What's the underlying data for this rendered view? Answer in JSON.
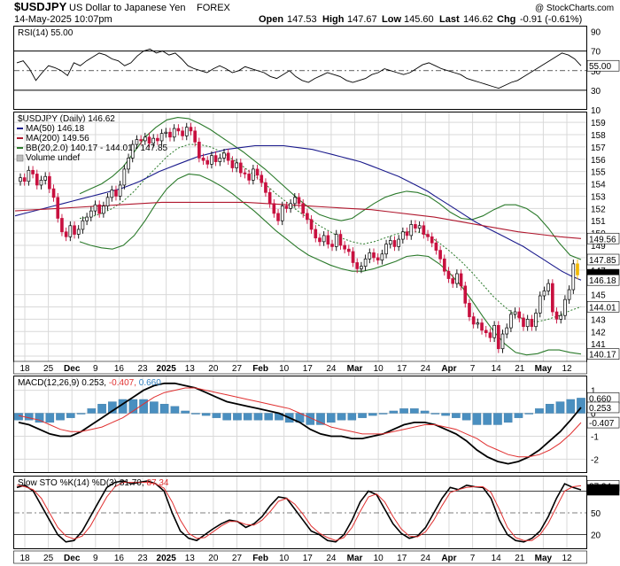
{
  "header": {
    "symbol": "$USDJPY",
    "name": "US Dollar to Japanese Yen",
    "exchange": "FOREX",
    "date": "14-May-2025 10:07pm",
    "copyright": "@ StockCharts.com",
    "quote": {
      "open_label": "Open",
      "open": "147.53",
      "high_label": "High",
      "high": "147.67",
      "low_label": "Low",
      "low": "145.60",
      "last_label": "Last",
      "last": "146.62",
      "chg_label": "Chg",
      "chg": "-0.91 (-0.61%)"
    }
  },
  "colors": {
    "up_candle": "#ffffff",
    "down_candle": "#c8103f",
    "ma50": "#1a1a8c",
    "ma200": "#b0182e",
    "bb": "#2b7a2b",
    "macd_hist": "#4a8fc0",
    "signal": "#e03030",
    "last_marker": "#f2b800"
  },
  "chart_data": [
    {
      "type": "line",
      "title": "RSI(14) 55.00",
      "y_ticks": [
        "90",
        "70",
        "50",
        "30",
        "10"
      ],
      "overbought": 70,
      "oversold": 30,
      "series": [
        {
          "name": "RSI(14)",
          "last_label": "55.00",
          "values": [
            58,
            60,
            52,
            40,
            48,
            55,
            53,
            50,
            45,
            58,
            55,
            60,
            64,
            68,
            66,
            62,
            60,
            55,
            58,
            65,
            70,
            72,
            68,
            70,
            66,
            68,
            62,
            55,
            52,
            50,
            48,
            52,
            55,
            52,
            48,
            50,
            54,
            52,
            50,
            48,
            44,
            42,
            46,
            50,
            44,
            40,
            38,
            42,
            45,
            48,
            46,
            44,
            40,
            38,
            40,
            42,
            46,
            48,
            52,
            50,
            48,
            46,
            48,
            52,
            56,
            58,
            55,
            52,
            50,
            48,
            46,
            42,
            40,
            38,
            36,
            34,
            32,
            35,
            38,
            40,
            44,
            48,
            52,
            56,
            60,
            64,
            68,
            66,
            62,
            55
          ]
        }
      ],
      "ylim": [
        10,
        95
      ]
    },
    {
      "type": "line",
      "title": "$USDJPY (Daily) 146.62",
      "legend": [
        {
          "key": "ma50",
          "label": "MA(50) 146.18"
        },
        {
          "key": "ma200",
          "label": "MA(200) 149.56"
        },
        {
          "key": "bb",
          "label": "BB(20,2.0) 140.17 - 144.01 - 147.85"
        },
        {
          "key": "vol",
          "label": "Volume undef"
        }
      ],
      "y_ticks": [
        "159",
        "158",
        "157",
        "156",
        "155",
        "154",
        "153",
        "152",
        "151",
        "150",
        "149",
        "148",
        "147",
        "145",
        "144",
        "143",
        "142",
        "141",
        "140"
      ],
      "ylim": [
        139.5,
        159.8
      ],
      "price_tags": [
        {
          "value": 149.56,
          "label": "149.56",
          "style": "plain"
        },
        {
          "value": 147.85,
          "label": "147.85",
          "style": "plain"
        },
        {
          "value": 146.62,
          "label": "146.62",
          "style": "dark"
        },
        {
          "value": 146.18,
          "label": "146.18",
          "style": "plain"
        },
        {
          "value": 144.01,
          "label": "144.01",
          "style": "plain"
        },
        {
          "value": 140.17,
          "label": "140.17",
          "style": "plain"
        }
      ],
      "x_labels": [
        "18",
        "25",
        "Dec",
        "9",
        "16",
        "23",
        "2025",
        "13",
        "20",
        "27",
        "Feb",
        "10",
        "17",
        "24",
        "Mar",
        "10",
        "17",
        "24",
        "Apr",
        "7",
        "14",
        "21",
        "May",
        "12"
      ],
      "close": [
        154.5,
        154.2,
        155.1,
        154.8,
        153.9,
        154.3,
        154.6,
        153.6,
        152.9,
        151.2,
        150.1,
        149.7,
        150.6,
        149.9,
        150.3,
        151.0,
        151.3,
        151.8,
        152.3,
        151.6,
        152.2,
        152.9,
        153.5,
        153.0,
        153.9,
        155.2,
        156.1,
        157.2,
        157.6,
        157.5,
        157.8,
        157.3,
        157.7,
        157.5,
        158.1,
        158.2,
        157.8,
        158.5,
        158.3,
        157.9,
        158.6,
        158.3,
        157.4,
        156.1,
        155.9,
        155.6,
        156.3,
        155.8,
        156.1,
        156.5,
        155.9,
        155.3,
        155.7,
        154.9,
        154.8,
        154.3,
        155.2,
        154.7,
        154.1,
        153.3,
        152.4,
        151.6,
        151.0,
        152.2,
        152.0,
        152.4,
        152.9,
        152.4,
        151.6,
        151.1,
        150.3,
        149.6,
        149.3,
        149.8,
        149.1,
        148.9,
        149.9,
        149.0,
        148.7,
        148.5,
        147.6,
        147.1,
        147.3,
        147.9,
        148.4,
        148.0,
        147.8,
        148.3,
        149.1,
        149.4,
        148.9,
        149.5,
        150.1,
        149.8,
        150.7,
        150.4,
        150.6,
        149.9,
        149.7,
        149.2,
        148.6,
        147.9,
        146.9,
        146.3,
        145.9,
        146.7,
        145.7,
        144.3,
        143.2,
        142.6,
        142.7,
        142.1,
        141.9,
        141.5,
        142.5,
        140.6,
        141.8,
        142.3,
        143.4,
        143.6,
        143.1,
        142.4,
        143.0,
        142.4,
        143.5,
        144.9,
        145.3,
        145.9,
        143.6,
        143.0,
        143.3,
        144.6,
        145.4,
        147.5,
        146.6
      ],
      "ma50": [
        151.4,
        151.6,
        151.8,
        152.0,
        152.2,
        152.4,
        152.6,
        152.8,
        153.0,
        153.2,
        153.4,
        153.6,
        153.9,
        154.2,
        154.6,
        155.0,
        155.3,
        155.6,
        155.9,
        156.2,
        156.4,
        156.6,
        156.8,
        156.9,
        157.0,
        157.1,
        157.1,
        157.1,
        157.1,
        157.0,
        156.9,
        156.8,
        156.6,
        156.4,
        156.2,
        156.0,
        155.8,
        155.5,
        155.2,
        154.9,
        154.6,
        154.2,
        153.8,
        153.4,
        152.9,
        152.4,
        151.9,
        151.4,
        150.9,
        150.5,
        150.1,
        149.7,
        149.3,
        148.9,
        148.4,
        147.9,
        147.4,
        146.9,
        146.5,
        146.18
      ],
      "ma200": [
        151.8,
        151.9,
        152.0,
        152.1,
        152.2,
        152.3,
        152.4,
        152.5,
        152.5,
        152.5,
        152.5,
        152.5,
        152.4,
        152.3,
        152.2,
        152.1,
        152.0,
        151.9,
        151.7,
        151.5,
        151.3,
        151.0,
        150.7,
        150.4,
        150.1,
        149.9,
        149.7,
        149.56
      ],
      "bb_upper": [
        153.2,
        153.6,
        154.0,
        154.6,
        155.4,
        156.6,
        157.8,
        158.6,
        159.2,
        159.4,
        159.3,
        158.9,
        158.4,
        157.8,
        157.2,
        156.6,
        155.9,
        155.2,
        154.4,
        153.6,
        152.8,
        152.1,
        151.5,
        151.2,
        151.0,
        151.2,
        151.8,
        152.4,
        152.9,
        153.2,
        153.4,
        153.3,
        153.0,
        152.4,
        151.7,
        151.2,
        151.1,
        151.4,
        151.9,
        152.3,
        152.3,
        152.0,
        151.4,
        150.4,
        149.2,
        148.2,
        147.85
      ],
      "bb_lower": [
        149.3,
        149.0,
        148.8,
        148.7,
        149.0,
        149.8,
        151.0,
        152.4,
        153.6,
        154.4,
        154.8,
        154.7,
        154.3,
        153.8,
        153.2,
        152.5,
        151.8,
        151.0,
        150.2,
        149.5,
        148.8,
        148.2,
        147.8,
        147.4,
        147.1,
        146.9,
        146.9,
        147.1,
        147.4,
        147.7,
        148.1,
        148.2,
        148.1,
        147.5,
        146.7,
        145.7,
        144.5,
        143.2,
        142.0,
        141.0,
        140.3,
        140.1,
        140.2,
        140.5,
        140.5,
        140.3,
        140.17
      ],
      "bb_mid": [
        151.2,
        151.3,
        151.6,
        152.0,
        152.6,
        153.4,
        154.4,
        155.3,
        156.2,
        156.9,
        157.2,
        157.2,
        157.0,
        156.6,
        156.0,
        155.4,
        154.7,
        154.0,
        153.2,
        152.5,
        151.8,
        151.2,
        150.6,
        150.1,
        149.6,
        149.3,
        149.1,
        149.3,
        149.6,
        149.9,
        150.1,
        150.1,
        149.8,
        149.2,
        148.5,
        147.7,
        146.8,
        145.8,
        144.8,
        144.0,
        143.3,
        142.9,
        142.8,
        143.0,
        143.3,
        143.7,
        144.01
      ]
    },
    {
      "type": "line",
      "title": "MACD(12,26,9) 0.253, -0.407, 0.660",
      "title_parts": {
        "name": "MACD(12,26,9)",
        "macd": "0.253",
        "signal": "-0.407",
        "hist": "0.660"
      },
      "y_ticks": [
        "1",
        "0",
        "-1",
        "-2"
      ],
      "ylim": [
        -2.6,
        1.6
      ],
      "tags": [
        {
          "value": 0.66,
          "label": "0.660",
          "style": "plain"
        },
        {
          "value": 0.253,
          "label": "0.253",
          "style": "plain"
        },
        {
          "value": -0.407,
          "label": "-0.407",
          "style": "plain"
        }
      ],
      "macd": [
        -0.4,
        -0.5,
        -0.7,
        -0.9,
        -1.0,
        -1.0,
        -0.8,
        -0.5,
        -0.2,
        0.1,
        0.4,
        0.7,
        1.0,
        1.2,
        1.3,
        1.3,
        1.2,
        1.1,
        0.9,
        0.7,
        0.5,
        0.4,
        0.3,
        0.2,
        0.1,
        0.0,
        -0.2,
        -0.4,
        -0.7,
        -0.9,
        -1.0,
        -1.0,
        -1.1,
        -1.1,
        -1.0,
        -0.9,
        -0.7,
        -0.5,
        -0.4,
        -0.4,
        -0.5,
        -0.7,
        -0.9,
        -1.2,
        -1.6,
        -1.9,
        -2.1,
        -2.2,
        -2.1,
        -1.9,
        -1.6,
        -1.2,
        -0.8,
        -0.3,
        0.253
      ],
      "signal": [
        -0.1,
        -0.2,
        -0.3,
        -0.5,
        -0.7,
        -0.8,
        -0.8,
        -0.7,
        -0.6,
        -0.4,
        -0.2,
        0.1,
        0.4,
        0.7,
        0.9,
        1.0,
        1.1,
        1.1,
        1.0,
        0.9,
        0.8,
        0.7,
        0.6,
        0.5,
        0.4,
        0.3,
        0.2,
        0.0,
        -0.2,
        -0.4,
        -0.6,
        -0.7,
        -0.8,
        -0.9,
        -0.9,
        -0.9,
        -0.8,
        -0.7,
        -0.6,
        -0.5,
        -0.5,
        -0.6,
        -0.7,
        -0.9,
        -1.1,
        -1.4,
        -1.6,
        -1.8,
        -1.9,
        -1.9,
        -1.8,
        -1.6,
        -1.3,
        -0.9,
        -0.407
      ],
      "histogram": [
        -0.3,
        -0.3,
        -0.4,
        -0.4,
        -0.3,
        -0.2,
        0.0,
        0.2,
        0.4,
        0.5,
        0.6,
        0.6,
        0.6,
        0.5,
        0.4,
        0.3,
        0.1,
        0.0,
        -0.1,
        -0.2,
        -0.3,
        -0.3,
        -0.3,
        -0.3,
        -0.3,
        -0.3,
        -0.4,
        -0.4,
        -0.5,
        -0.5,
        -0.4,
        -0.3,
        -0.3,
        -0.2,
        -0.1,
        0.0,
        0.1,
        0.2,
        0.2,
        0.1,
        0.0,
        -0.1,
        -0.2,
        -0.3,
        -0.5,
        -0.5,
        -0.5,
        -0.4,
        -0.2,
        0.0,
        0.2,
        0.4,
        0.5,
        0.6,
        0.66
      ]
    },
    {
      "type": "line",
      "title": "Slow STO %K(14) %D(3) 81.70, 87.34",
      "title_parts": {
        "name": "Slow STO %K(14) %D(3)",
        "k": "81.70",
        "d": "87.34"
      },
      "y_ticks": [
        "80",
        "50",
        "20"
      ],
      "ylim": [
        0,
        100
      ],
      "tags": [
        {
          "value": 87.34,
          "label": "87.34",
          "style": "plain"
        },
        {
          "value": 81.7,
          "label": "81.70",
          "style": "dark"
        }
      ],
      "k": [
        85,
        88,
        80,
        60,
        40,
        20,
        10,
        12,
        25,
        45,
        65,
        85,
        92,
        94,
        90,
        92,
        94,
        90,
        80,
        50,
        25,
        15,
        12,
        20,
        28,
        35,
        40,
        38,
        30,
        35,
        45,
        60,
        72,
        70,
        55,
        40,
        25,
        20,
        12,
        10,
        20,
        40,
        65,
        80,
        75,
        55,
        35,
        22,
        15,
        18,
        30,
        50,
        70,
        85,
        82,
        88,
        86,
        85,
        70,
        40,
        20,
        12,
        10,
        15,
        25,
        45,
        70,
        90,
        85,
        81.7
      ],
      "d": [
        88,
        86,
        82,
        70,
        50,
        30,
        18,
        14,
        18,
        32,
        52,
        72,
        86,
        92,
        92,
        92,
        92,
        90,
        84,
        65,
        40,
        22,
        15,
        16,
        24,
        32,
        38,
        38,
        34,
        33,
        40,
        52,
        66,
        70,
        62,
        48,
        32,
        22,
        16,
        12,
        16,
        30,
        52,
        72,
        76,
        65,
        45,
        28,
        18,
        17,
        24,
        40,
        60,
        78,
        82,
        85,
        86,
        86,
        78,
        55,
        30,
        16,
        12,
        12,
        20,
        36,
        58,
        80,
        86,
        87.34
      ]
    }
  ]
}
